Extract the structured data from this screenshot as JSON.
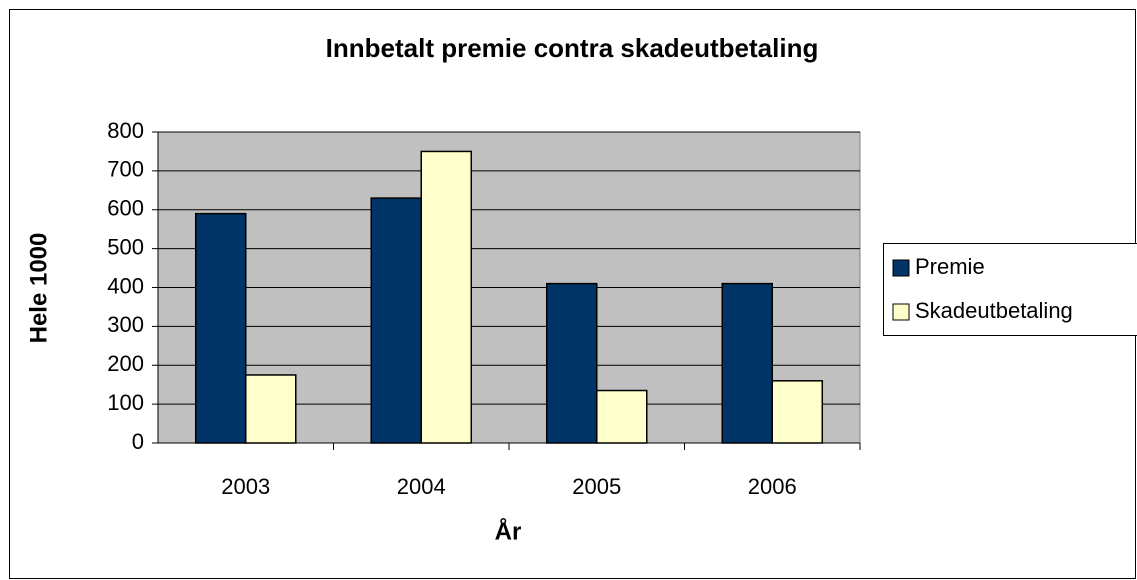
{
  "chart_data": {
    "type": "bar",
    "title": "Innbetalt premie contra skadeutbetaling",
    "x_label": "År",
    "y_label": "Hele 1000",
    "categories": [
      "2003",
      "2004",
      "2005",
      "2006"
    ],
    "series": [
      {
        "name": "Premie",
        "color": "#003366",
        "values": [
          590,
          630,
          410,
          410
        ]
      },
      {
        "name": "Skadeutbetaling",
        "color": "#ffffcc",
        "values": [
          175,
          750,
          135,
          160
        ]
      }
    ],
    "ylim": [
      0,
      800
    ],
    "yticks": [
      0,
      100,
      200,
      300,
      400,
      500,
      600,
      700,
      800
    ],
    "grid": true,
    "legend": "right",
    "plot_background": "#c0c0c0"
  }
}
